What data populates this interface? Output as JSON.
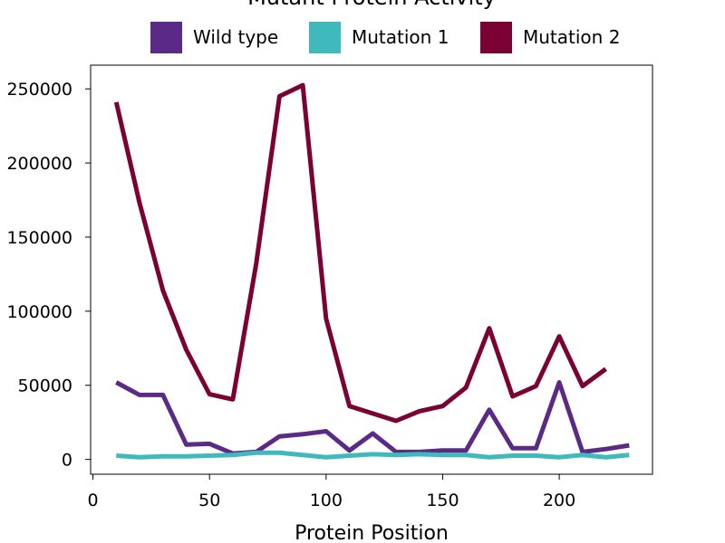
{
  "chart_data": {
    "type": "line",
    "title": "Mutant Protein Activity",
    "xlabel": "Protein Position",
    "ylabel": "",
    "xlim": [
      -1,
      240
    ],
    "ylim": [
      -10000,
      266000
    ],
    "x_ticks": [
      0,
      50,
      100,
      150,
      200
    ],
    "y_ticks": [
      0,
      50000,
      100000,
      150000,
      200000,
      250000
    ],
    "legend_position": "top-center",
    "series": [
      {
        "name": "Wild type",
        "color": "#5b2a86",
        "x": [
          10,
          20,
          30,
          40,
          50,
          60,
          70,
          80,
          90,
          100,
          110,
          120,
          130,
          140,
          150,
          160,
          170,
          180,
          190,
          200,
          210,
          220,
          230
        ],
        "values": [
          52000,
          43500,
          43500,
          10000,
          10500,
          4000,
          5000,
          15500,
          17000,
          19000,
          6000,
          17500,
          5000,
          5000,
          6000,
          6000,
          33500,
          7500,
          7500,
          52000,
          5000,
          7000,
          9500
        ]
      },
      {
        "name": "Mutation 1",
        "color": "#3fb9bc",
        "x": [
          10,
          20,
          30,
          40,
          50,
          60,
          70,
          80,
          90,
          100,
          110,
          120,
          130,
          140,
          150,
          160,
          170,
          180,
          190,
          200,
          210,
          220,
          230
        ],
        "values": [
          2500,
          1500,
          2000,
          2000,
          2500,
          3000,
          4500,
          4500,
          3000,
          1500,
          2500,
          3500,
          3000,
          3500,
          3000,
          3000,
          1500,
          2500,
          2500,
          1500,
          3000,
          1500,
          3000
        ]
      },
      {
        "name": "Mutation 2",
        "color": "#7b0034",
        "x": [
          10,
          20,
          30,
          40,
          50,
          60,
          70,
          80,
          90,
          100,
          110,
          120,
          130,
          140,
          150,
          160,
          170,
          180,
          190,
          200,
          210,
          220
        ],
        "values": [
          241000,
          173000,
          114000,
          74000,
          44000,
          40500,
          132000,
          245000,
          252500,
          95000,
          36000,
          31000,
          26000,
          32500,
          36000,
          48500,
          88500,
          42500,
          49500,
          83000,
          49500,
          61000
        ]
      }
    ]
  }
}
